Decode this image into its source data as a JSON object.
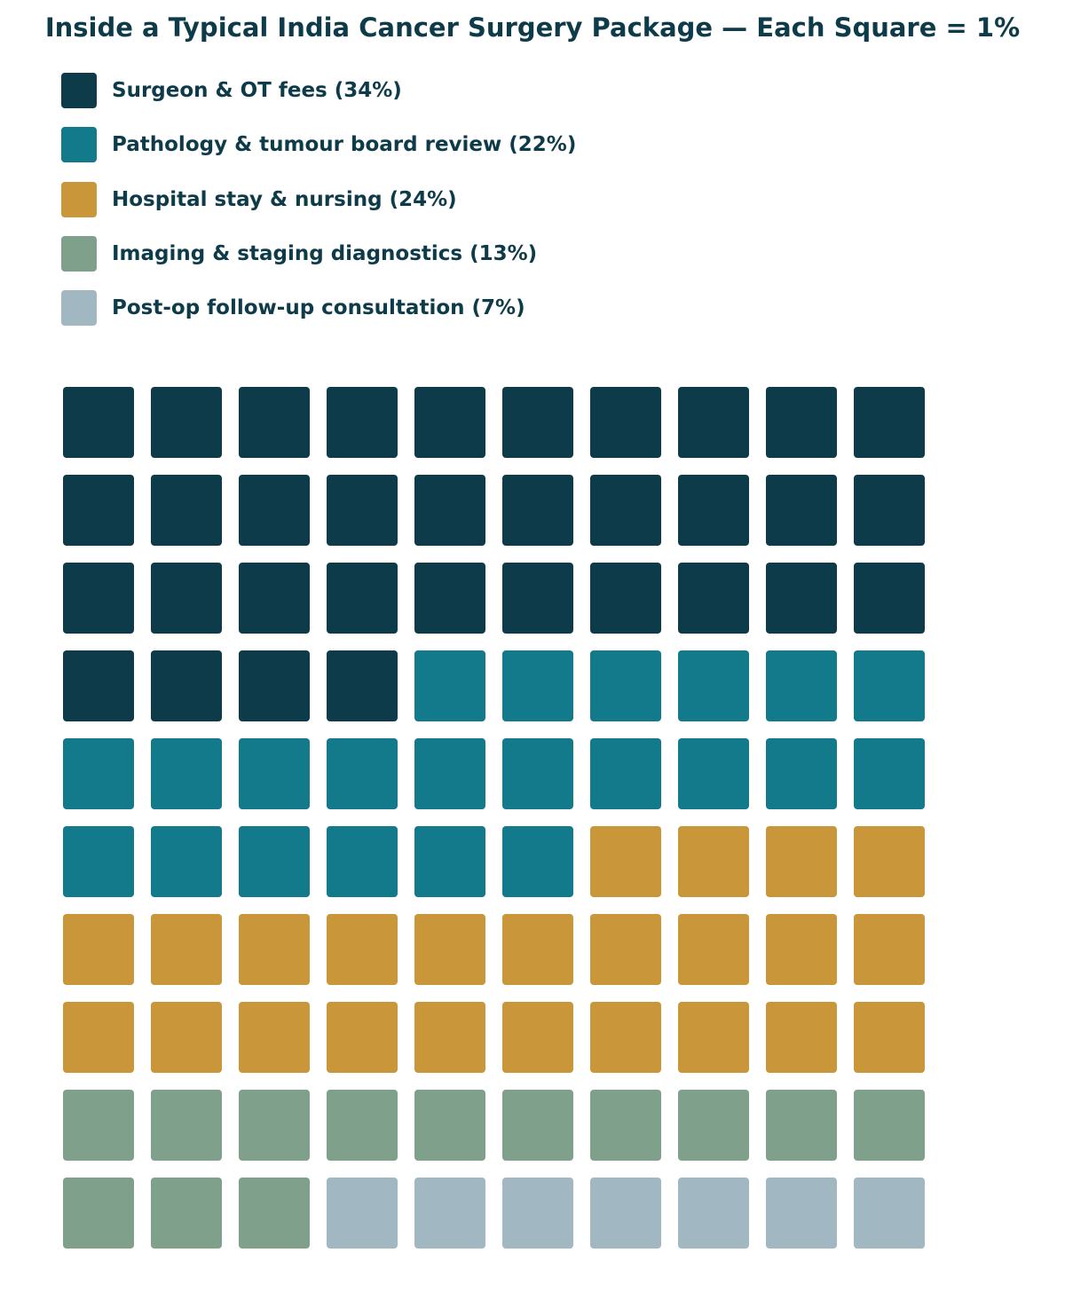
{
  "chart_data": {
    "type": "waffle",
    "title": "Inside a Typical India Cancer Surgery Package — Each Square = 1%",
    "unit": "%",
    "grid": {
      "rows": 10,
      "cols": 10
    },
    "legend_position": "top-left",
    "series": [
      {
        "name": "Surgeon & OT fees",
        "value": 34,
        "label": "Surgeon & OT fees (34%)",
        "color": "#0e3b4a"
      },
      {
        "name": "Pathology & tumour board review",
        "value": 22,
        "label": "Pathology & tumour board review (22%)",
        "color": "#137a8b"
      },
      {
        "name": "Hospital stay & nursing",
        "value": 24,
        "label": "Hospital stay & nursing (24%)",
        "color": "#c9963a"
      },
      {
        "name": "Imaging & staging diagnostics",
        "value": 13,
        "label": "Imaging & staging diagnostics (13%)",
        "color": "#7fa08a"
      },
      {
        "name": "Post-op follow-up consultation",
        "value": 7,
        "label": "Post-op follow-up consultation (7%)",
        "color": "#a1b7c1"
      }
    ]
  }
}
